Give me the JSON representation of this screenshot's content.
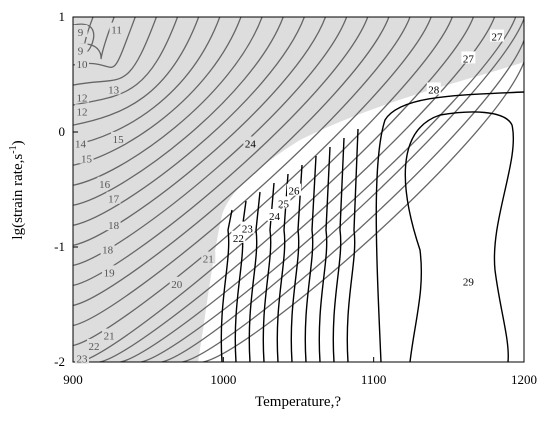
{
  "chart_data": {
    "type": "contour",
    "xlabel": "Temperature,?",
    "ylabel": "lg(strain rate,s",
    "ylabel_sup": "-1",
    "ylabel_end": ")",
    "xlim": [
      900,
      1200
    ],
    "ylim": [
      -2,
      1
    ],
    "xticks": [
      900,
      1000,
      1100,
      1200
    ],
    "yticks": [
      -2,
      -1,
      0,
      1
    ],
    "contour_labels": [
      {
        "level": 11,
        "x": 929,
        "y": 0.89
      },
      {
        "level": 9,
        "x": 905,
        "y": 0.87
      },
      {
        "level": 9,
        "x": 905,
        "y": 0.71
      },
      {
        "level": 10,
        "x": 906,
        "y": 0.59
      },
      {
        "level": 13,
        "x": 927,
        "y": 0.37
      },
      {
        "level": 12,
        "x": 906,
        "y": 0.3
      },
      {
        "level": 12,
        "x": 906,
        "y": 0.18
      },
      {
        "level": 14,
        "x": 905,
        "y": -0.1
      },
      {
        "level": 15,
        "x": 930,
        "y": -0.06
      },
      {
        "level": 15,
        "x": 909,
        "y": -0.23
      },
      {
        "level": 16,
        "x": 921,
        "y": -0.45
      },
      {
        "level": 17,
        "x": 927,
        "y": -0.58
      },
      {
        "level": 18,
        "x": 927,
        "y": -0.81
      },
      {
        "level": 18,
        "x": 923,
        "y": -1.02
      },
      {
        "level": 19,
        "x": 924,
        "y": -1.22
      },
      {
        "level": 20,
        "x": 969,
        "y": -1.32
      },
      {
        "level": 21,
        "x": 990,
        "y": -1.1
      },
      {
        "level": 21,
        "x": 924,
        "y": -1.77
      },
      {
        "level": 22,
        "x": 914,
        "y": -1.86
      },
      {
        "level": 23,
        "x": 906,
        "y": -1.97
      },
      {
        "level": 22,
        "x": 1010,
        "y": -0.92
      },
      {
        "level": 23,
        "x": 1016,
        "y": -0.84
      },
      {
        "level": 24,
        "x": 1034,
        "y": -0.73
      },
      {
        "level": 25,
        "x": 1040,
        "y": -0.62
      },
      {
        "level": 26,
        "x": 1047,
        "y": -0.51
      },
      {
        "level": 24,
        "x": 1018,
        "y": -0.1
      },
      {
        "level": 27,
        "x": 1182,
        "y": 0.83
      },
      {
        "level": 27,
        "x": 1163,
        "y": 0.64
      },
      {
        "level": 28,
        "x": 1140,
        "y": 0.37
      },
      {
        "level": 29,
        "x": 1163,
        "y": -1.3
      }
    ]
  }
}
